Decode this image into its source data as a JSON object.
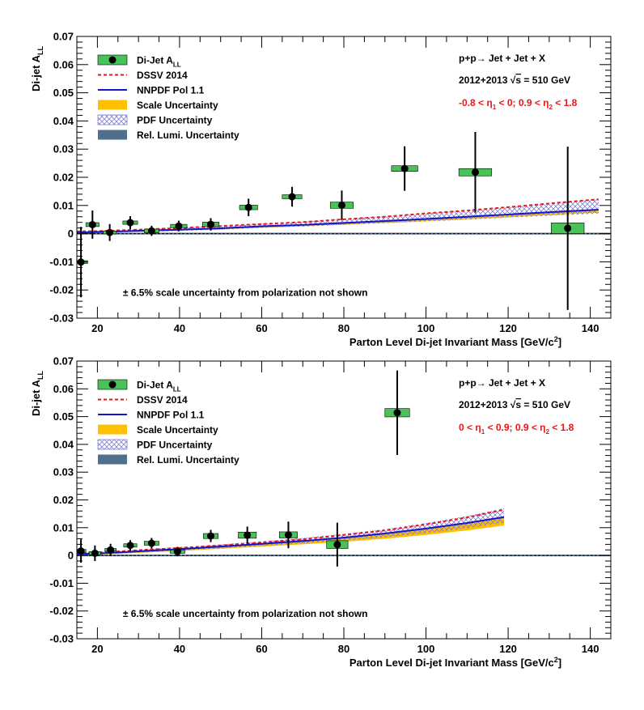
{
  "colors": {
    "point": "#000000",
    "box": "#49c357",
    "dssv": "#e8161b",
    "nnpdf": "#1414cc",
    "scale": "#ffc000",
    "pdf": "#8080d0",
    "lumi": "#4f6f8c",
    "region_text": "#e8161b"
  },
  "legend": {
    "items": [
      {
        "key": "data",
        "label": "Di-Jet A",
        "sub": "LL"
      },
      {
        "key": "dssv",
        "label": "DSSV 2014"
      },
      {
        "key": "nnpdf",
        "label": "NNPDF Pol 1.1"
      },
      {
        "key": "scale",
        "label": "Scale Uncertainty"
      },
      {
        "key": "pdf",
        "label": "PDF Uncertainty"
      },
      {
        "key": "lumi",
        "label": "Rel. Lumi. Uncertainty"
      }
    ]
  },
  "chart_data": [
    {
      "type": "scatter",
      "ylabel": "Di-jet A",
      "ylabel_sub": "LL",
      "xlabel": "Parton Level Di-jet Invariant Mass [GeV/c²]",
      "xlim": [
        15,
        145
      ],
      "ylim": [
        -0.03,
        0.07
      ],
      "xticks": [
        "20",
        "40",
        "60",
        "80",
        "100",
        "120",
        "140"
      ],
      "yticks": [
        "-0.03",
        "-0.02",
        "-0.01",
        "0",
        "0.01",
        "0.02",
        "0.03",
        "0.04",
        "0.05",
        "0.06",
        "0.07"
      ],
      "annotation": {
        "process": "p+p→ Jet + Jet + X",
        "energy_years": "2012+2013",
        "sqrt_s": "s",
        "energy_value": "= 510 GeV",
        "region": {
          "p1": "-0.8 < η",
          "s1": "1",
          "p2": "< 0; 0.9 < η",
          "s2": "2",
          "p3": "< 1.8"
        }
      },
      "note": "± 6.5% scale uncertainty from polarization not shown",
      "series": [
        {
          "name": "Di-Jet A_LL",
          "x": [
            16.0,
            18.8,
            23.0,
            28.0,
            33.2,
            39.8,
            47.6,
            56.8,
            67.4,
            79.5,
            94.8,
            112.0,
            134.5
          ],
          "y": [
            -0.0101,
            0.0032,
            0.0004,
            0.0039,
            0.001,
            0.0027,
            0.0033,
            0.0093,
            0.0131,
            0.0101,
            0.0231,
            0.0218,
            0.0019
          ],
          "yerr": [
            0.0125,
            0.005,
            0.003,
            0.0023,
            0.0018,
            0.0019,
            0.0022,
            0.0031,
            0.0035,
            0.0052,
            0.0079,
            0.0143,
            0.029
          ],
          "syst_halfwidth": [
            1.6,
            1.6,
            1.6,
            1.8,
            1.8,
            2.0,
            2.0,
            2.2,
            2.4,
            2.8,
            3.2,
            4.0,
            4.0
          ],
          "syst_halfheight": [
            0.0005,
            0.0007,
            0.0005,
            0.0006,
            0.0006,
            0.0006,
            0.0008,
            0.0008,
            0.0007,
            0.0011,
            0.001,
            0.0013,
            0.0019
          ]
        },
        {
          "name": "DSSV 2014",
          "x": [
            15,
            20,
            30,
            40,
            50,
            60,
            70,
            80,
            90,
            100,
            110,
            120,
            130,
            142
          ],
          "y": [
            0.0008,
            0.0009,
            0.0014,
            0.002,
            0.0027,
            0.0034,
            0.0041,
            0.0051,
            0.006,
            0.0072,
            0.0082,
            0.0094,
            0.0107,
            0.0122
          ]
        },
        {
          "name": "NNPDF Pol 1.1",
          "x": [
            15,
            20,
            30,
            40,
            50,
            60,
            70,
            80,
            90,
            100,
            110,
            120,
            130,
            142
          ],
          "y": [
            0.0004,
            0.0006,
            0.001,
            0.0014,
            0.0019,
            0.0026,
            0.0031,
            0.0038,
            0.0045,
            0.0052,
            0.006,
            0.0068,
            0.0076,
            0.0085
          ]
        },
        {
          "name": "Scale Uncertainty",
          "x": [
            15,
            20,
            30,
            40,
            50,
            60,
            70,
            80,
            90,
            100,
            110,
            120,
            130,
            142
          ],
          "lo": [
            0.0002,
            0.0004,
            0.0007,
            0.0011,
            0.0015,
            0.0021,
            0.0026,
            0.0032,
            0.0038,
            0.0044,
            0.0051,
            0.0058,
            0.0066,
            0.0074
          ],
          "hi": [
            0.0005,
            0.0007,
            0.0011,
            0.0015,
            0.002,
            0.0027,
            0.0032,
            0.0039,
            0.0046,
            0.0053,
            0.0061,
            0.0069,
            0.0077,
            0.0086
          ]
        },
        {
          "name": "PDF Uncertainty",
          "x": [
            15,
            20,
            30,
            40,
            50,
            60,
            70,
            80,
            90,
            100,
            110,
            120,
            130,
            142
          ],
          "lo": [
            0.0001,
            0.0002,
            0.0006,
            0.001,
            0.0014,
            0.002,
            0.0025,
            0.0031,
            0.0037,
            0.0043,
            0.005,
            0.0057,
            0.0063,
            0.0071
          ],
          "hi": [
            0.0008,
            0.001,
            0.0015,
            0.0021,
            0.0028,
            0.0035,
            0.0042,
            0.0052,
            0.0061,
            0.0072,
            0.0082,
            0.0094,
            0.0106,
            0.0122
          ]
        },
        {
          "name": "Rel. Lumi. Uncertainty",
          "x": [
            15,
            145
          ],
          "lo": [
            -0.0003,
            -0.0003
          ],
          "hi": [
            0.0003,
            0.0003
          ]
        }
      ]
    },
    {
      "type": "scatter",
      "ylabel": "Di-jet A",
      "ylabel_sub": "LL",
      "xlabel": "Parton Level Di-jet Invariant Mass [GeV/c²]",
      "xlim": [
        15,
        145
      ],
      "ylim": [
        -0.03,
        0.07
      ],
      "xticks": [
        "20",
        "40",
        "60",
        "80",
        "100",
        "120",
        "140"
      ],
      "yticks": [
        "-0.03",
        "-0.02",
        "-0.01",
        "0",
        "0.01",
        "0.02",
        "0.03",
        "0.04",
        "0.05",
        "0.06",
        "0.07"
      ],
      "annotation": {
        "process": "p+p→ Jet + Jet + X",
        "energy_years": "2012+2013",
        "sqrt_s": "s",
        "energy_value": "= 510 GeV",
        "region": {
          "p1": "0 < η",
          "s1": "1",
          "p2": "< 0.9; 0.9 < η",
          "s2": "2",
          "p3": "< 1.8"
        }
      },
      "note": "± 6.5% scale uncertainty from polarization not shown",
      "series": [
        {
          "name": "Di-Jet A_LL",
          "x": [
            16.0,
            19.4,
            23.2,
            28.0,
            33.2,
            39.5,
            47.6,
            56.5,
            66.5,
            78.4,
            93.0
          ],
          "y": [
            0.0016,
            0.0008,
            0.002,
            0.0036,
            0.0044,
            0.0014,
            0.007,
            0.0073,
            0.0074,
            0.0039,
            0.0514
          ],
          "yerr": [
            0.0042,
            0.0028,
            0.0022,
            0.0019,
            0.0019,
            0.0017,
            0.0022,
            0.0031,
            0.0048,
            0.0079,
            0.0152
          ],
          "syst_halfwidth": [
            1.2,
            1.4,
            1.4,
            1.6,
            1.8,
            1.8,
            1.8,
            2.2,
            2.2,
            2.6,
            3.0
          ],
          "syst_halfheight": [
            0.0006,
            0.0006,
            0.0005,
            0.0006,
            0.0007,
            0.0006,
            0.0009,
            0.0011,
            0.0011,
            0.0014,
            0.0015
          ]
        },
        {
          "name": "DSSV 2014",
          "x": [
            15,
            20,
            30,
            40,
            50,
            60,
            70,
            80,
            90,
            100,
            110,
            119
          ],
          "y": [
            0.0008,
            0.001,
            0.0019,
            0.0027,
            0.0036,
            0.0047,
            0.0058,
            0.0074,
            0.009,
            0.0112,
            0.0137,
            0.0165
          ]
        },
        {
          "name": "NNPDF Pol 1.1",
          "x": [
            15,
            20,
            30,
            40,
            50,
            60,
            70,
            80,
            90,
            100,
            110,
            119
          ],
          "y": [
            0.0005,
            0.0007,
            0.0015,
            0.0023,
            0.0032,
            0.0042,
            0.0052,
            0.0064,
            0.0079,
            0.0097,
            0.0117,
            0.0138
          ]
        },
        {
          "name": "Scale Uncertainty",
          "x": [
            15,
            20,
            30,
            40,
            50,
            60,
            70,
            80,
            90,
            100,
            110,
            119
          ],
          "lo": [
            0.0001,
            0.0003,
            0.0009,
            0.0016,
            0.0024,
            0.0032,
            0.004,
            0.0049,
            0.006,
            0.0074,
            0.009,
            0.0108
          ],
          "hi": [
            0.0006,
            0.0008,
            0.0016,
            0.0024,
            0.0033,
            0.0043,
            0.0053,
            0.0065,
            0.008,
            0.0098,
            0.0118,
            0.014
          ]
        },
        {
          "name": "PDF Uncertainty",
          "x": [
            15,
            20,
            30,
            40,
            50,
            60,
            70,
            80,
            90,
            100,
            110,
            119
          ],
          "lo": [
            0.0001,
            0.0003,
            0.001,
            0.0017,
            0.0025,
            0.0034,
            0.0043,
            0.0053,
            0.0065,
            0.008,
            0.0098,
            0.0118
          ],
          "hi": [
            0.0009,
            0.0012,
            0.0021,
            0.003,
            0.004,
            0.0051,
            0.0063,
            0.0078,
            0.0095,
            0.0117,
            0.0142,
            0.017
          ]
        },
        {
          "name": "Rel. Lumi. Uncertainty",
          "x": [
            15,
            145
          ],
          "lo": [
            -0.0003,
            -0.0003
          ],
          "hi": [
            0.0003,
            0.0003
          ]
        }
      ]
    }
  ]
}
